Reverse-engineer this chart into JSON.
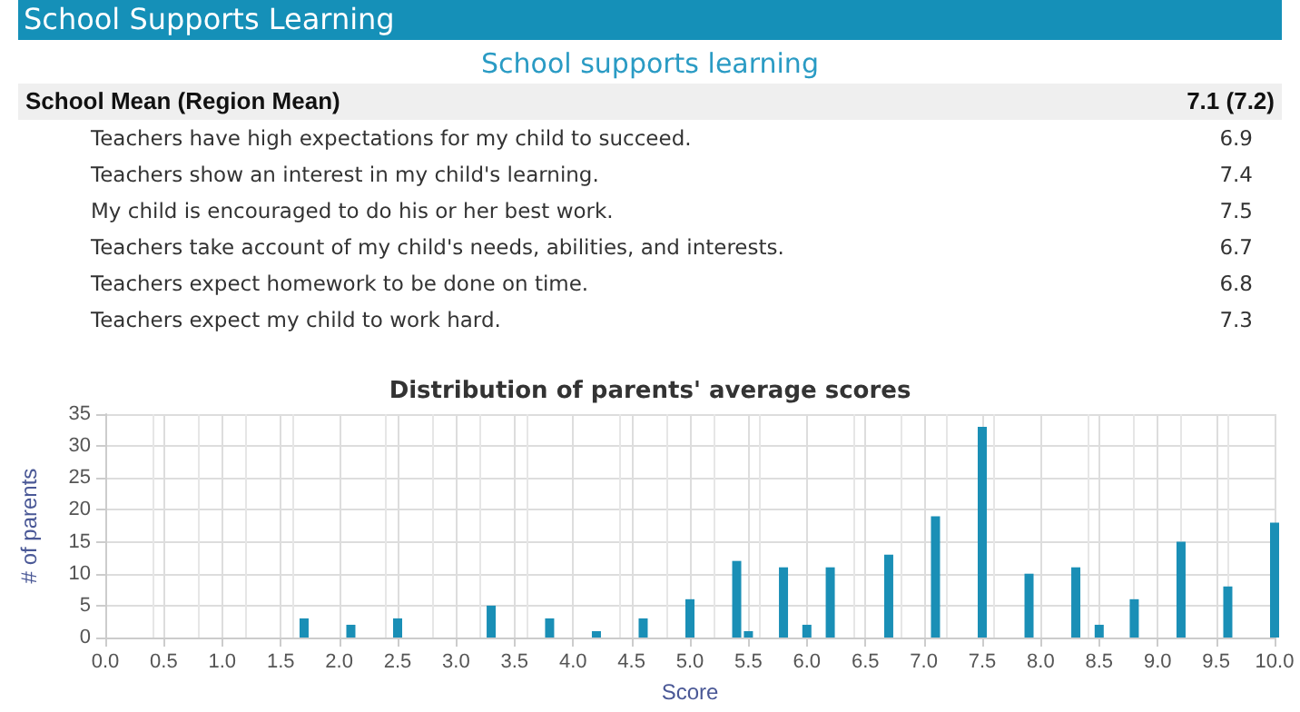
{
  "chart_data": [
    {
      "type": "other",
      "title": "School Supports Learning",
      "subtitle": "School supports learning",
      "annotations": [
        "School Mean (Region Mean)",
        "7.1 (7.2)",
        "Teachers have high expectations for my child to succeed.",
        "6.9",
        "Teachers show an interest in my child's learning.",
        "7.4",
        "My child is encouraged to do his or her best work.",
        "7.5",
        "Teachers take account of my child's needs, abilities, and interests.",
        "6.7",
        "Teachers expect homework to be done on time.",
        "6.8",
        "Teachers expect my child to work hard.",
        "7.3"
      ]
    },
    {
      "type": "bar",
      "title": "Distribution of parents' average scores",
      "xlabel": "Score",
      "ylabel": "# of parents",
      "x": [
        1.7,
        2.1,
        2.5,
        3.3,
        3.8,
        4.2,
        4.6,
        5.0,
        5.4,
        5.5,
        5.8,
        6.0,
        6.2,
        6.7,
        7.1,
        7.5,
        7.9,
        8.3,
        8.5,
        8.8,
        9.2,
        9.6,
        10.0
      ],
      "values": [
        3,
        2,
        3,
        5,
        3,
        1,
        3,
        6,
        12,
        1,
        11,
        2,
        11,
        13,
        19,
        33,
        10,
        11,
        2,
        6,
        15,
        8,
        18
      ],
      "color": "#1a8fb6",
      "xlim": [
        0,
        10
      ],
      "xticks": [
        {
          "value": 0,
          "label": "0.0"
        },
        {
          "value": 0.5,
          "label": "0.5"
        },
        {
          "value": 1,
          "label": "1.0"
        },
        {
          "value": 1.5,
          "label": "1.5"
        },
        {
          "value": 2,
          "label": "2.0"
        },
        {
          "value": 2.5,
          "label": "2.5"
        },
        {
          "value": 3,
          "label": "3.0"
        },
        {
          "value": 3.5,
          "label": "3.5"
        },
        {
          "value": 4,
          "label": "4.0"
        },
        {
          "value": 4.5,
          "label": "4.5"
        },
        {
          "value": 5,
          "label": "5.0"
        },
        {
          "value": 5.5,
          "label": "5.5"
        },
        {
          "value": 6,
          "label": "6.0"
        },
        {
          "value": 6.5,
          "label": "6.5"
        },
        {
          "value": 7,
          "label": "7.0"
        },
        {
          "value": 7.5,
          "label": "7.5"
        },
        {
          "value": 8,
          "label": "8.0"
        },
        {
          "value": 8.5,
          "label": "8.5"
        },
        {
          "value": 9,
          "label": "9.0"
        },
        {
          "value": 9.5,
          "label": "9.5"
        },
        {
          "value": 10,
          "label": "10.0"
        }
      ],
      "ylim": [
        0,
        35
      ],
      "yticks": [
        0,
        5,
        10,
        15,
        20,
        25,
        30,
        35
      ],
      "grid": true
    }
  ]
}
